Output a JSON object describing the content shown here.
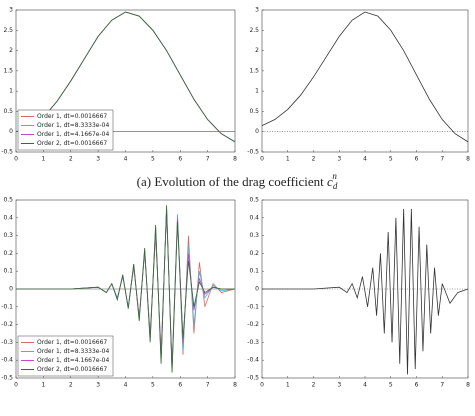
{
  "chart_data": [
    {
      "type": "line",
      "x": [
        0,
        0.5,
        1,
        1.5,
        2,
        2.5,
        3,
        3.5,
        4,
        4.5,
        5,
        5.5,
        6,
        6.5,
        7,
        7.5,
        8
      ],
      "series": [
        {
          "name": "Order 1, dt=0.0016667",
          "color": "#e06666",
          "values": [
            0,
            0.1,
            0.35,
            0.75,
            1.25,
            1.8,
            2.35,
            2.75,
            2.95,
            2.85,
            2.5,
            2.0,
            1.4,
            0.8,
            0.3,
            -0.05,
            -0.25
          ]
        },
        {
          "name": "Order 1, dt=8.3333e-04",
          "color": "#40b8d8",
          "values": [
            0,
            0.1,
            0.35,
            0.75,
            1.25,
            1.8,
            2.35,
            2.75,
            2.95,
            2.85,
            2.5,
            2.0,
            1.4,
            0.8,
            0.3,
            -0.05,
            -0.25
          ]
        },
        {
          "name": "Order 1, dt=4.1667e-04",
          "color": "#cc44cc",
          "values": [
            0,
            0.1,
            0.35,
            0.75,
            1.25,
            1.8,
            2.35,
            2.75,
            2.95,
            2.85,
            2.5,
            2.0,
            1.4,
            0.8,
            0.3,
            -0.05,
            -0.25
          ]
        },
        {
          "name": "Order 2, dt=0.0016667",
          "color": "#2e6e2e",
          "values": [
            0,
            0.1,
            0.35,
            0.75,
            1.25,
            1.8,
            2.35,
            2.75,
            2.95,
            2.85,
            2.5,
            2.0,
            1.4,
            0.8,
            0.3,
            -0.05,
            -0.25
          ]
        }
      ],
      "xlim": [
        0,
        8
      ],
      "ylim": [
        -0.5,
        3
      ],
      "xticks": [
        0,
        1,
        2,
        3,
        4,
        5,
        6,
        7,
        8
      ],
      "yticks": [
        -0.5,
        0,
        0.5,
        1,
        1.5,
        2,
        2.5,
        3
      ],
      "legend": "lower left",
      "zero_line": "solid"
    },
    {
      "type": "line",
      "x": [
        0,
        0.5,
        1,
        1.5,
        2,
        2.5,
        3,
        3.5,
        4,
        4.5,
        5,
        5.5,
        6,
        6.5,
        7,
        7.5,
        8
      ],
      "series": [
        {
          "color": "#333333",
          "values": [
            0.15,
            0.3,
            0.55,
            0.9,
            1.35,
            1.85,
            2.35,
            2.75,
            2.95,
            2.85,
            2.5,
            2.0,
            1.4,
            0.8,
            0.3,
            -0.05,
            -0.25
          ]
        }
      ],
      "xlim": [
        0,
        8
      ],
      "ylim": [
        -0.5,
        3
      ],
      "xticks": [
        0,
        1,
        2,
        3,
        4,
        5,
        6,
        7,
        8
      ],
      "yticks": [
        -0.5,
        0,
        0.5,
        1,
        1.5,
        2,
        2.5,
        3
      ],
      "zero_line": "dotted"
    },
    {
      "type": "line",
      "x": [
        0,
        2,
        3,
        3.3,
        3.5,
        3.7,
        3.9,
        4.1,
        4.3,
        4.5,
        4.7,
        4.9,
        5.1,
        5.3,
        5.5,
        5.7,
        5.9,
        6.1,
        6.3,
        6.5,
        6.7,
        6.9,
        7.2,
        7.5,
        8
      ],
      "series": [
        {
          "name": "Order 1, dt=0.0016667",
          "color": "#e06666",
          "values": [
            0,
            0,
            0.01,
            -0.02,
            0.03,
            -0.05,
            0.07,
            -0.1,
            0.12,
            -0.15,
            0.2,
            -0.25,
            0.3,
            -0.35,
            0.43,
            -0.42,
            0.4,
            -0.37,
            0.3,
            -0.25,
            0.15,
            -0.1,
            0.03,
            -0.02,
            0
          ]
        },
        {
          "name": "Order 1, dt=8.3333e-04",
          "color": "#40b8d8",
          "values": [
            0,
            0,
            0.01,
            -0.02,
            0.03,
            -0.05,
            0.07,
            -0.1,
            0.13,
            -0.16,
            0.21,
            -0.27,
            0.33,
            -0.38,
            0.45,
            -0.45,
            0.42,
            -0.35,
            0.25,
            -0.2,
            0.1,
            -0.05,
            0.02,
            -0.01,
            0
          ]
        },
        {
          "name": "Order 1, dt=4.1667e-04",
          "color": "#cc44cc",
          "values": [
            0,
            0,
            0.01,
            -0.02,
            0.03,
            -0.06,
            0.08,
            -0.11,
            0.14,
            -0.17,
            0.22,
            -0.28,
            0.35,
            -0.4,
            0.46,
            -0.46,
            0.4,
            -0.3,
            0.2,
            -0.12,
            0.06,
            -0.03,
            0.01,
            0,
            0
          ]
        },
        {
          "name": "Order 2, dt=0.0016667",
          "color": "#2e6e2e",
          "values": [
            0,
            0,
            0.01,
            -0.02,
            0.03,
            -0.06,
            0.08,
            -0.11,
            0.14,
            -0.18,
            0.23,
            -0.3,
            0.36,
            -0.42,
            0.47,
            -0.47,
            0.38,
            -0.28,
            0.16,
            -0.1,
            0.04,
            -0.02,
            0.01,
            0,
            0
          ]
        }
      ],
      "xlim": [
        0,
        8
      ],
      "ylim": [
        -0.5,
        0.5
      ],
      "xticks": [
        0,
        1,
        2,
        3,
        4,
        5,
        6,
        7,
        8
      ],
      "yticks": [
        -0.5,
        -0.4,
        -0.3,
        -0.2,
        -0.1,
        0,
        0.1,
        0.2,
        0.3,
        0.4,
        0.5
      ],
      "legend": "lower left",
      "zero_line": "solid"
    },
    {
      "type": "line",
      "x": [
        0,
        2,
        3,
        3.3,
        3.5,
        3.7,
        3.9,
        4.1,
        4.3,
        4.45,
        4.6,
        4.75,
        4.9,
        5.05,
        5.2,
        5.35,
        5.5,
        5.65,
        5.8,
        5.95,
        6.1,
        6.25,
        6.4,
        6.55,
        6.7,
        6.85,
        7.0,
        7.3,
        7.6,
        8
      ],
      "series": [
        {
          "color": "#333333",
          "values": [
            0,
            0,
            0.01,
            -0.02,
            0.03,
            -0.05,
            0.07,
            -0.1,
            0.12,
            -0.15,
            0.2,
            -0.25,
            0.32,
            -0.3,
            0.4,
            -0.42,
            0.45,
            -0.48,
            0.45,
            -0.45,
            0.35,
            -0.35,
            0.25,
            -0.25,
            0.12,
            -0.15,
            0.03,
            -0.08,
            -0.02,
            0
          ]
        }
      ],
      "xlim": [
        0,
        8
      ],
      "ylim": [
        -0.5,
        0.5
      ],
      "xticks": [
        0,
        1,
        2,
        3,
        4,
        5,
        6,
        7,
        8
      ],
      "yticks": [
        -0.5,
        -0.4,
        -0.3,
        -0.2,
        -0.1,
        0,
        0.1,
        0.2,
        0.3,
        0.4,
        0.5
      ],
      "zero_line": "dotted"
    }
  ],
  "caption": {
    "text": "(a) Evolution of the drag coefficient",
    "symbol": "c",
    "sub": "d",
    "sup": "n"
  }
}
